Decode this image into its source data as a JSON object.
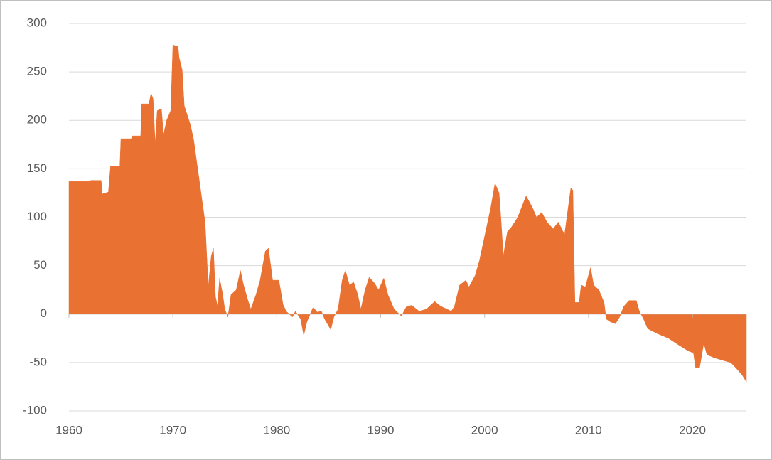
{
  "chart_data": {
    "type": "area",
    "color": "#e97132",
    "grid": true,
    "x": [
      1960.0,
      1962.0,
      1962.1,
      1963.1,
      1963.2,
      1963.8,
      1964.0,
      1964.9,
      1965.0,
      1966.0,
      1966.1,
      1966.9,
      1967.0,
      1967.7,
      1967.9,
      1968.1,
      1968.3,
      1968.5,
      1968.9,
      1969.1,
      1969.4,
      1969.8,
      1970.0,
      1970.5,
      1970.6,
      1970.9,
      1971.1,
      1971.7,
      1972.0,
      1972.9,
      1973.1,
      1973.3,
      1973.4,
      1973.7,
      1973.9,
      1974.1,
      1974.3,
      1974.5,
      1974.8,
      1975.0,
      1975.3,
      1975.6,
      1976.1,
      1976.5,
      1976.8,
      1977.2,
      1977.5,
      1978.0,
      1978.4,
      1978.9,
      1979.2,
      1979.6,
      1980.2,
      1980.6,
      1980.9,
      1981.5,
      1981.8,
      1982.3,
      1982.6,
      1982.9,
      1983.5,
      1983.9,
      1984.3,
      1984.6,
      1985.2,
      1985.5,
      1985.9,
      1986.3,
      1986.6,
      1987.0,
      1987.4,
      1987.8,
      1988.1,
      1988.5,
      1988.9,
      1989.4,
      1989.8,
      1990.3,
      1990.7,
      1991.3,
      1992.0,
      1992.5,
      1993.0,
      1993.7,
      1994.4,
      1995.2,
      1995.8,
      1996.8,
      1997.1,
      1997.6,
      1998.2,
      1998.5,
      1999.1,
      1999.5,
      2000.0,
      2000.6,
      2001.0,
      2001.4,
      2001.6,
      2001.8,
      2002.2,
      2002.6,
      2003.2,
      2004.0,
      2004.6,
      2005.0,
      2005.5,
      2006.0,
      2006.6,
      2007.1,
      2007.7,
      2008.3,
      2008.5,
      2008.7,
      2009.1,
      2009.3,
      2009.7,
      2010.2,
      2010.5,
      2011.0,
      2011.5,
      2011.7,
      2012.1,
      2012.6,
      2013.0,
      2013.4,
      2013.9,
      2014.6,
      2014.9,
      2015.3,
      2015.7,
      2016.6,
      2017.7,
      2018.7,
      2019.6,
      2020.1,
      2020.3,
      2020.7,
      2021.1,
      2021.4,
      2022.1,
      2023.0,
      2023.7,
      2024.4,
      2024.8,
      2025.2
    ],
    "values": [
      137,
      137,
      138,
      138,
      124,
      126,
      153,
      153,
      181,
      181,
      184,
      184,
      217,
      217,
      228,
      222,
      176,
      210,
      212,
      185,
      200,
      210,
      278,
      276,
      265,
      252,
      215,
      195,
      180,
      110,
      95,
      52,
      28,
      60,
      68,
      18,
      8,
      37,
      20,
      5,
      -3,
      20,
      25,
      45,
      30,
      15,
      5,
      20,
      35,
      65,
      68,
      35,
      35,
      10,
      3,
      -3,
      3,
      -5,
      -22,
      -8,
      7,
      2,
      3,
      -5,
      -16,
      -3,
      5,
      35,
      45,
      30,
      33,
      20,
      5,
      25,
      38,
      32,
      25,
      37,
      20,
      5,
      -2,
      8,
      9,
      3,
      5,
      13,
      8,
      3,
      8,
      30,
      35,
      28,
      40,
      55,
      80,
      110,
      135,
      125,
      95,
      60,
      85,
      90,
      100,
      122,
      110,
      100,
      105,
      95,
      88,
      95,
      82,
      130,
      128,
      12,
      12,
      30,
      28,
      48,
      30,
      25,
      12,
      -5,
      -8,
      -10,
      -3,
      8,
      14,
      14,
      3,
      -5,
      -15,
      -20,
      -25,
      -32,
      -38,
      -40,
      -55,
      -55,
      -30,
      -42,
      -45,
      -48,
      -50,
      -58,
      -63,
      -70
    ],
    "xlim": [
      1960,
      2025.2
    ],
    "xticks": [
      1960,
      1970,
      1980,
      1990,
      2000,
      2010,
      2020
    ],
    "ylim": [
      -100,
      300
    ],
    "yticks": [
      -100,
      -50,
      0,
      50,
      100,
      150,
      200,
      250,
      300
    ]
  }
}
